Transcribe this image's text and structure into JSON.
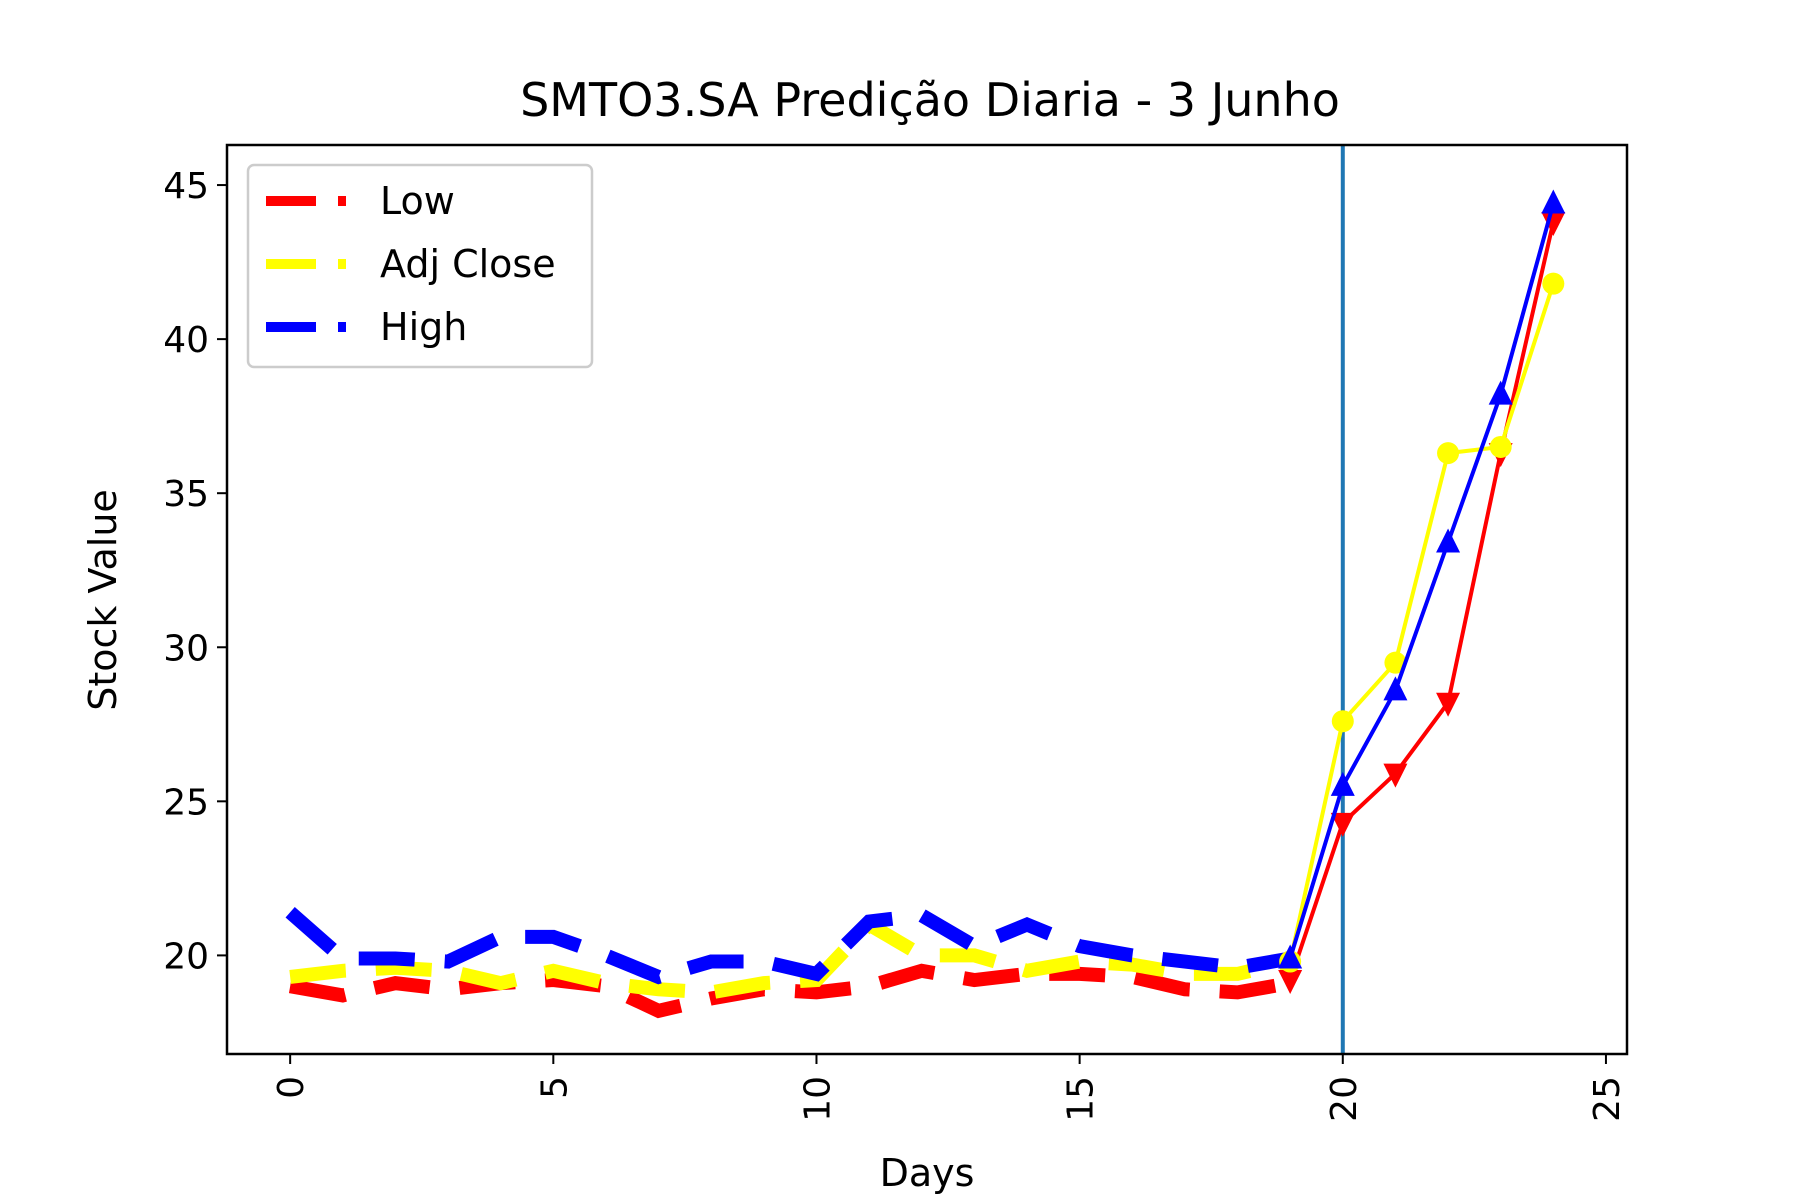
{
  "chart_data": {
    "type": "line",
    "title": "SMTO3.SA Predição Diaria - 3 Junho",
    "xlabel": "Days",
    "ylabel": "Stock Value",
    "xlim": [
      -1.2,
      25.4
    ],
    "ylim": [
      16.8,
      46.3
    ],
    "xticks": [
      "0",
      "5",
      "10",
      "15",
      "20",
      "25"
    ],
    "yticks": [
      "20",
      "25",
      "30",
      "35",
      "40",
      "45"
    ],
    "grid": false,
    "legend_position": "upper-left",
    "prediction_start_day": 20,
    "vline_color": "#1f77b4",
    "series": [
      {
        "name": "Low",
        "color": "#ff0000",
        "marker": "triangle-down",
        "history": [
          19.0,
          18.7,
          19.1,
          18.9,
          19.1,
          19.2,
          19.0,
          18.2,
          18.6,
          18.9,
          18.8,
          19.0,
          19.5,
          19.2,
          19.4,
          19.4,
          19.3,
          18.9,
          18.8,
          19.1
        ],
        "predicted": [
          19.2,
          24.3,
          25.9,
          28.2,
          36.3,
          43.8
        ]
      },
      {
        "name": "Adj Close",
        "color": "#ffff00",
        "marker": "circle",
        "history": [
          19.3,
          19.5,
          19.6,
          19.5,
          19.1,
          19.5,
          19.1,
          18.9,
          18.8,
          19.1,
          19.2,
          21.0,
          20.0,
          20.0,
          19.5,
          19.8,
          19.7,
          19.4,
          19.4,
          19.8
        ],
        "predicted": [
          19.8,
          27.6,
          29.5,
          36.3,
          36.5,
          41.8
        ]
      },
      {
        "name": "High",
        "color": "#0000ff",
        "marker": "triangle-up",
        "history": [
          21.4,
          19.9,
          19.9,
          19.8,
          20.6,
          20.6,
          20.0,
          19.3,
          19.8,
          19.8,
          19.4,
          21.1,
          21.3,
          20.3,
          21.0,
          20.3,
          20.0,
          19.8,
          19.6,
          19.9
        ],
        "predicted": [
          19.9,
          25.5,
          28.6,
          33.4,
          38.2,
          44.4
        ]
      }
    ]
  }
}
